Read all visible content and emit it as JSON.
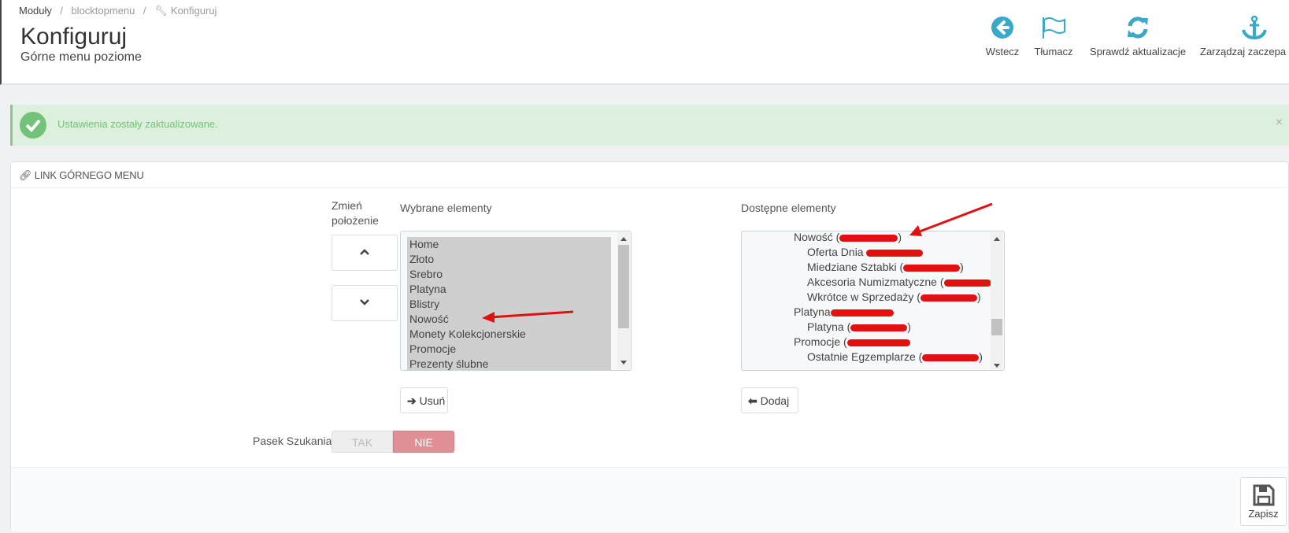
{
  "breadcrumb": [
    "Moduły",
    "blocktopmenu",
    "Konfiguruj"
  ],
  "header": {
    "title": "Konfiguruj",
    "subtitle": "Górne menu poziome"
  },
  "toolbar": [
    {
      "label": "Wstecz",
      "icon": "arrow-circle-left-icon"
    },
    {
      "label": "Tłumacz",
      "icon": "flag-icon"
    },
    {
      "label": "Sprawdź aktualizacje",
      "icon": "refresh-icon"
    },
    {
      "label": "Zarządzaj zaczepa",
      "icon": "anchor-icon"
    }
  ],
  "alert": {
    "message": "Ustawienia zostały zaktualizowane.",
    "close": "×",
    "color": "#72c279"
  },
  "panel": {
    "heading": "LINK GÓRNEGO MENU",
    "reorder_label": "Zmień położenie",
    "selected_label": "Wybrane elementy",
    "selected_items": [
      "Home",
      "Złoto",
      "Srebro",
      "Platyna",
      "Blistry",
      "Nowość",
      "Monety Kolekcjonerskie",
      "Promocje",
      "Prezenty ślubne"
    ],
    "available_label": "Dostępne elementy",
    "available_items": [
      {
        "text": "Nowość (",
        "suffix": ")",
        "level": 1
      },
      {
        "text": "Oferta Dnia ",
        "suffix": "",
        "level": 2
      },
      {
        "text": "Miedziane Sztabki (",
        "suffix": ")",
        "level": 2
      },
      {
        "text": "Akcesoria Numizmatyczne (",
        "suffix": "",
        "level": 2
      },
      {
        "text": "Wkrótce w Sprzedaży (",
        "suffix": ")",
        "level": 2
      },
      {
        "text": "Platyna",
        "suffix": "",
        "level": 1
      },
      {
        "text": "Platyna (",
        "suffix": ")",
        "level": 2
      },
      {
        "text": "Promocje (",
        "suffix": "",
        "level": 1
      },
      {
        "text": "Ostatnie Egzemplarze (",
        "suffix": ")",
        "level": 2
      }
    ],
    "remove_label": "Usuń",
    "add_label": "Dodaj",
    "search_label": "Pasek Szukania",
    "toggle": {
      "yes": "TAK",
      "no": "NIE",
      "value": "NIE",
      "active_color": "#e08f95"
    },
    "save_label": "Zapisz"
  },
  "colors": {
    "accent": "#25b9d7",
    "icon": "#3aa8c8",
    "annotation": "#e31010"
  }
}
